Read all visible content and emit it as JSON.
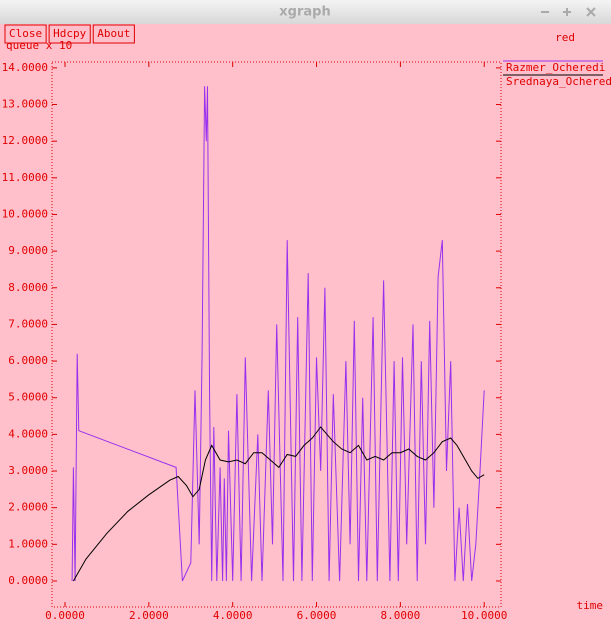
{
  "window": {
    "title": "xgraph",
    "buttons": [
      "Close",
      "Hdcpy",
      "About"
    ]
  },
  "chart_data": {
    "type": "line",
    "ylabel": "queue x 10",
    "xlabel": "time",
    "annotation": "red",
    "xlim": [
      -0.31,
      10.4
    ],
    "ylim": [
      -0.71,
      14.16
    ],
    "xticks": [
      {
        "value": 0,
        "label": "0.0000"
      },
      {
        "value": 2,
        "label": "2.0000"
      },
      {
        "value": 4,
        "label": "4.0000"
      },
      {
        "value": 6,
        "label": "6.0000"
      },
      {
        "value": 8,
        "label": "8.0000"
      },
      {
        "value": 10,
        "label": "10.0000"
      }
    ],
    "yticks": [
      {
        "value": 0,
        "label": "0.0000"
      },
      {
        "value": 1,
        "label": "1.0000"
      },
      {
        "value": 2,
        "label": "2.0000"
      },
      {
        "value": 3,
        "label": "3.0000"
      },
      {
        "value": 4,
        "label": "4.0000"
      },
      {
        "value": 5,
        "label": "5.0000"
      },
      {
        "value": 6,
        "label": "6.0000"
      },
      {
        "value": 7,
        "label": "7.0000"
      },
      {
        "value": 8,
        "label": "8.0000"
      },
      {
        "value": 9,
        "label": "9.0000"
      },
      {
        "value": 10,
        "label": "10.0000"
      },
      {
        "value": 11,
        "label": "11.0000"
      },
      {
        "value": 12,
        "label": "12.0000"
      },
      {
        "value": 13,
        "label": "13.0000"
      },
      {
        "value": 14,
        "label": "14.0000"
      }
    ],
    "series": [
      {
        "name": "Razmer_Ocheredi",
        "color": "#9a30ee",
        "x": [
          0.17,
          0.2,
          0.24,
          0.29,
          0.33,
          2.65,
          2.8,
          3.0,
          3.1,
          3.2,
          3.27,
          3.33,
          3.37,
          3.4,
          3.45,
          3.5,
          3.55,
          3.62,
          3.7,
          3.76,
          3.8,
          3.85,
          3.9,
          4.0,
          4.1,
          4.2,
          4.3,
          4.45,
          4.6,
          4.7,
          4.85,
          4.95,
          5.05,
          5.2,
          5.3,
          5.45,
          5.55,
          5.65,
          5.8,
          5.9,
          6.0,
          6.1,
          6.2,
          6.3,
          6.4,
          6.55,
          6.7,
          6.8,
          6.9,
          7.0,
          7.1,
          7.2,
          7.35,
          7.45,
          7.6,
          7.75,
          7.85,
          7.95,
          8.05,
          8.15,
          8.3,
          8.4,
          8.5,
          8.6,
          8.7,
          8.8,
          8.9,
          9.0,
          9.1,
          9.2,
          9.3,
          9.4,
          9.5,
          9.6,
          9.7,
          9.8,
          9.9,
          10.0
        ],
        "values": [
          0,
          3.1,
          0,
          6.2,
          4.1,
          3.1,
          0,
          0.5,
          5.2,
          1.0,
          6.2,
          13.5,
          12.0,
          13.5,
          5.0,
          0,
          4.2,
          0,
          3.1,
          0,
          2.8,
          0,
          4.1,
          0,
          5.1,
          0,
          6.1,
          0,
          4.0,
          0,
          5.2,
          1.0,
          7.0,
          0,
          9.3,
          0,
          7.2,
          0,
          8.4,
          0,
          6.1,
          3.0,
          8.0,
          0,
          5.1,
          0,
          6.0,
          1.0,
          7.1,
          0,
          5.0,
          0,
          7.2,
          0,
          8.2,
          0,
          6.0,
          0,
          6.1,
          1.0,
          7.0,
          0,
          6.0,
          1.0,
          7.1,
          2.0,
          8.3,
          9.3,
          3.0,
          6.0,
          0,
          2.0,
          0,
          2.1,
          0,
          1.0,
          3.0,
          5.2
        ]
      },
      {
        "name": "Srednaya_Ochered",
        "color": "#000000",
        "x": [
          0.2,
          0.5,
          1.0,
          1.5,
          2.0,
          2.5,
          2.7,
          2.9,
          3.05,
          3.2,
          3.35,
          3.5,
          3.7,
          3.9,
          4.1,
          4.3,
          4.5,
          4.7,
          4.9,
          5.1,
          5.3,
          5.5,
          5.7,
          5.9,
          6.1,
          6.25,
          6.4,
          6.6,
          6.8,
          7.0,
          7.2,
          7.4,
          7.6,
          7.8,
          8.0,
          8.2,
          8.4,
          8.6,
          8.8,
          9.0,
          9.2,
          9.35,
          9.5,
          9.7,
          9.85,
          10.0
        ],
        "values": [
          0,
          0.6,
          1.3,
          1.9,
          2.35,
          2.75,
          2.85,
          2.6,
          2.3,
          2.5,
          3.3,
          3.7,
          3.3,
          3.25,
          3.3,
          3.2,
          3.5,
          3.5,
          3.3,
          3.1,
          3.45,
          3.4,
          3.7,
          3.9,
          4.2,
          4.0,
          3.8,
          3.6,
          3.5,
          3.7,
          3.3,
          3.4,
          3.3,
          3.5,
          3.5,
          3.6,
          3.4,
          3.3,
          3.5,
          3.8,
          3.9,
          3.7,
          3.4,
          3.0,
          2.8,
          2.9
        ]
      }
    ]
  }
}
